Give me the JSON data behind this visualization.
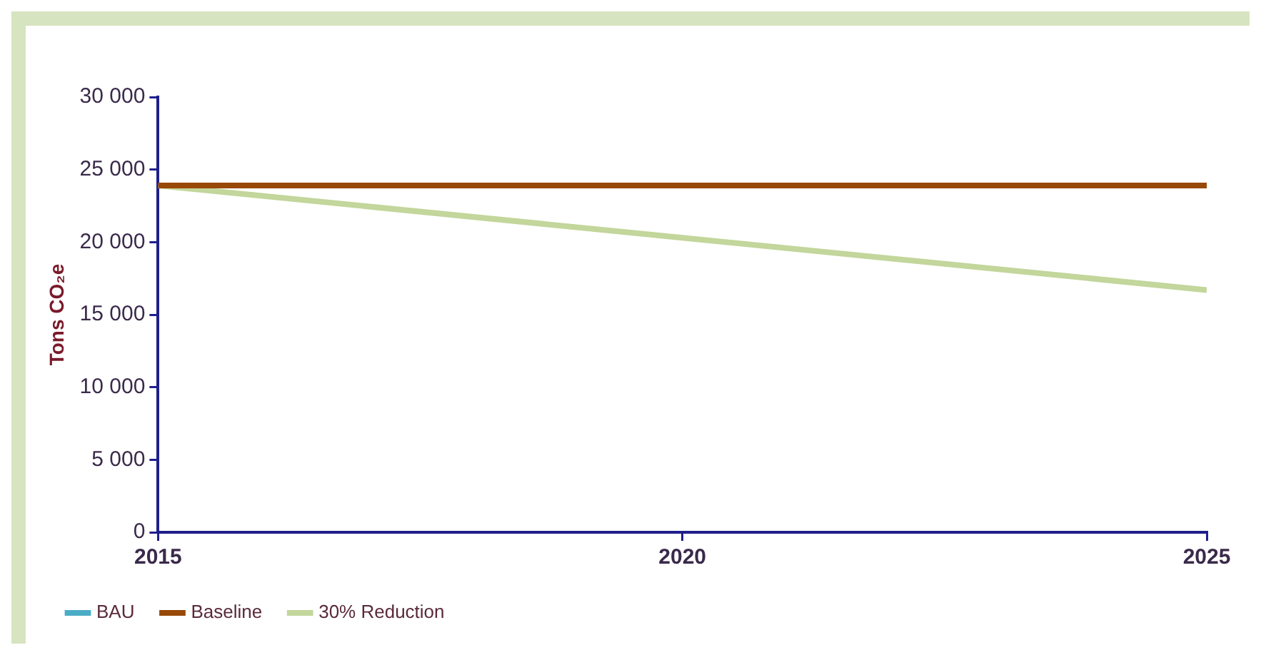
{
  "chart_data": {
    "type": "line",
    "ylabel": "Tons CO₂e",
    "x": [
      2015,
      2020,
      2025
    ],
    "series": [
      {
        "name": "BAU",
        "color": "#4bacc6",
        "values": [
          null,
          null,
          null
        ]
      },
      {
        "name": "Baseline",
        "color": "#984807",
        "values": [
          23900,
          23900,
          23900
        ]
      },
      {
        "name": "30% Reduction",
        "color": "#c3d69b",
        "values": [
          23900,
          20300,
          16700
        ]
      }
    ],
    "xlim": [
      2015,
      2025
    ],
    "xticks": [
      2015,
      2020,
      2025
    ],
    "ylim": [
      0,
      30000
    ],
    "yticks": [
      {
        "value": 0,
        "label": "0"
      },
      {
        "value": 5000,
        "label": "5 000"
      },
      {
        "value": 10000,
        "label": "10 000"
      },
      {
        "value": 15000,
        "label": "15 000"
      },
      {
        "value": 20000,
        "label": "20 000"
      },
      {
        "value": 25000,
        "label": "25 000"
      },
      {
        "value": 30000,
        "label": "30 000"
      }
    ],
    "grid": false,
    "legend": "bottom",
    "marker": "none",
    "line_style": "solid"
  }
}
